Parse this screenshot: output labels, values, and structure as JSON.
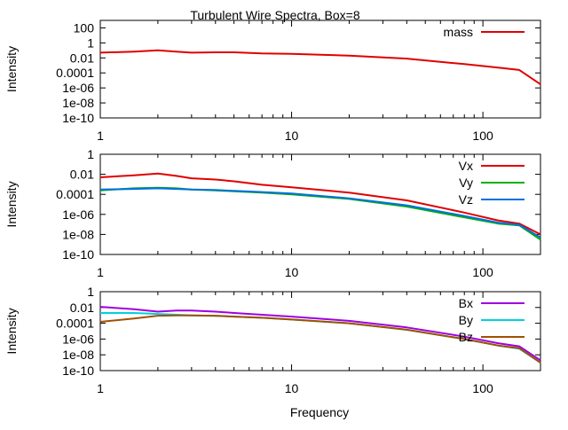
{
  "chart_data": {
    "title": "Turbulent Wire Spectra, Box=8",
    "xlabel": "Frequency",
    "xscale": "log",
    "xlim": [
      1,
      200
    ],
    "xticks": [
      1,
      10,
      100
    ],
    "xtick_labels": [
      "1",
      "10",
      "100"
    ],
    "panels": [
      {
        "type": "line",
        "ylabel": "Intensity",
        "yscale": "log",
        "ylim": [
          1e-10,
          1000
        ],
        "yticks": [
          100,
          1,
          0.01,
          0.0001,
          1e-06,
          1e-08,
          1e-10
        ],
        "ytick_labels": [
          "100",
          "1",
          "0.01",
          "0.0001",
          "1e-06",
          "1e-08",
          "1e-10"
        ],
        "legend_position": "top-right",
        "series": [
          {
            "name": "mass",
            "color": "#e00000",
            "x": [
              1,
              1.5,
              2,
              2.5,
              3,
              4,
              5,
              7,
              10,
              20,
              40,
              80,
              120,
              155,
              200
            ],
            "y": [
              0.05,
              0.07,
              0.1,
              0.07,
              0.05,
              0.055,
              0.055,
              0.04,
              0.035,
              0.02,
              0.008,
              0.0015,
              0.0005,
              0.00025,
              3e-06
            ]
          }
        ]
      },
      {
        "type": "line",
        "ylabel": "Intensity",
        "yscale": "log",
        "ylim": [
          1e-10,
          1
        ],
        "yticks": [
          1,
          0.01,
          0.0001,
          1e-06,
          1e-08,
          1e-10
        ],
        "ytick_labels": [
          "1",
          "0.01",
          "0.0001",
          "1e-06",
          "1e-08",
          "1e-10"
        ],
        "legend_position": "top-right",
        "series": [
          {
            "name": "Vx",
            "color": "#e00000",
            "x": [
              1,
              1.5,
              2,
              2.5,
              3,
              4,
              5,
              7,
              10,
              20,
              40,
              80,
              120,
              155,
              200
            ],
            "y": [
              0.005,
              0.008,
              0.012,
              0.007,
              0.004,
              0.003,
              0.002,
              0.0009,
              0.0005,
              0.00015,
              2.5e-05,
              1.5e-06,
              2.5e-07,
              1.2e-07,
              1e-08
            ]
          },
          {
            "name": "Vy",
            "color": "#00b000",
            "x": [
              1,
              1.5,
              2,
              2.5,
              3,
              4,
              5,
              7,
              10,
              20,
              40,
              80,
              120,
              155,
              200
            ],
            "y": [
              0.00025,
              0.0004,
              0.00045,
              0.0004,
              0.0003,
              0.00025,
              0.0002,
              0.00015,
              0.0001,
              3.5e-05,
              6e-06,
              5e-07,
              1.2e-07,
              8e-08,
              3e-09
            ]
          },
          {
            "name": "Vz",
            "color": "#0070e0",
            "x": [
              1,
              1.5,
              2,
              2.5,
              3,
              4,
              5,
              7,
              10,
              20,
              40,
              80,
              120,
              155,
              200
            ],
            "y": [
              0.0003,
              0.00035,
              0.0004,
              0.00035,
              0.0003,
              0.00027,
              0.00022,
              0.00017,
              0.00012,
              4e-05,
              8e-06,
              7e-07,
              1.5e-07,
              9e-08,
              5e-09
            ]
          }
        ]
      },
      {
        "type": "line",
        "ylabel": "Intensity",
        "yscale": "log",
        "ylim": [
          1e-10,
          1
        ],
        "yticks": [
          1,
          0.01,
          0.0001,
          1e-06,
          1e-08,
          1e-10
        ],
        "ytick_labels": [
          "1",
          "0.01",
          "0.0001",
          "1e-06",
          "1e-08",
          "1e-10"
        ],
        "legend_position": "top-right",
        "series": [
          {
            "name": "Bx",
            "color": "#a000e0",
            "x": [
              1,
              1.5,
              2,
              2.5,
              3,
              4,
              5,
              7,
              10,
              20,
              40,
              80,
              120,
              155,
              200
            ],
            "y": [
              0.012,
              0.006,
              0.003,
              0.004,
              0.004,
              0.003,
              0.002,
              0.0012,
              0.0007,
              0.0002,
              3e-05,
              2e-06,
              3e-07,
              1.2e-07,
              2e-09
            ]
          },
          {
            "name": "By",
            "color": "#00d0e0",
            "x": [
              1,
              1.5,
              2,
              2.5,
              3,
              4,
              5,
              7,
              10,
              20,
              40,
              80,
              120,
              155,
              200
            ],
            "y": [
              0.002,
              0.002,
              0.0015,
              0.0012,
              0.001,
              0.00085,
              0.0007,
              0.0005,
              0.0003,
              0.0001,
              1.5e-05,
              1e-06,
              1.5e-07,
              6e-08,
              1e-09
            ]
          },
          {
            "name": "Bz",
            "color": "#a05000",
            "x": [
              1,
              1.5,
              2,
              2.5,
              3,
              4,
              5,
              7,
              10,
              20,
              40,
              80,
              120,
              155,
              200
            ],
            "y": [
              0.00015,
              0.0004,
              0.0009,
              0.001,
              0.001,
              0.0009,
              0.0007,
              0.0005,
              0.0003,
              0.0001,
              1.5e-05,
              1e-06,
              1.5e-07,
              7e-08,
              1e-09
            ]
          }
        ]
      }
    ]
  }
}
